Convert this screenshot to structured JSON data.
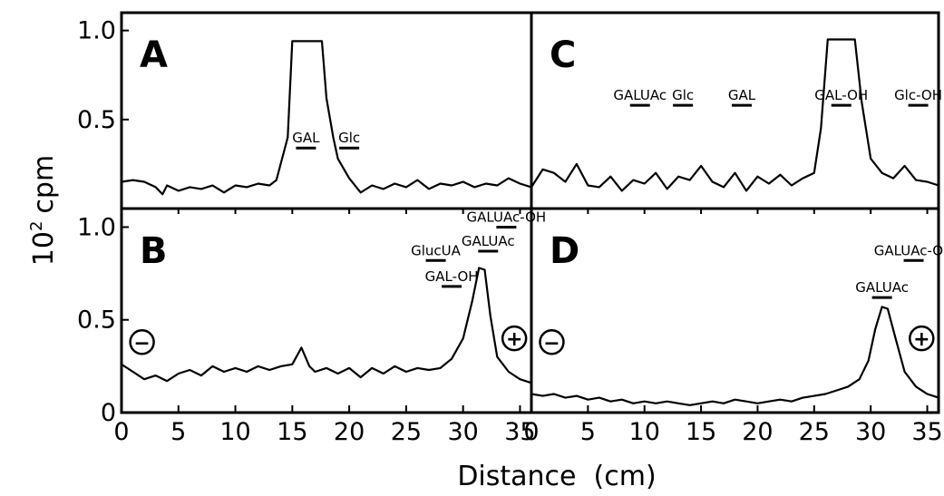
{
  "figure": {
    "ylabel_base": "10",
    "ylabel_exp": "2",
    "ylabel_unit": "cpm",
    "xlabel": "Distance  (cm)"
  },
  "colors": {
    "line": "#000000",
    "background": "#ffffff"
  },
  "chart_data": [
    {
      "type": "line",
      "panel": "A",
      "xlim": [
        0,
        36
      ],
      "ylim": [
        0,
        1.1
      ],
      "yticks": [
        "0.5",
        "1.0"
      ],
      "xticks": [],
      "peak_labels": [
        {
          "text": "GAL",
          "x": 16.2,
          "y": 0.34
        },
        {
          "text": "Glc",
          "x": 20.0,
          "y": 0.34
        }
      ],
      "signs": [],
      "x": [
        0,
        1,
        2,
        3,
        3.6,
        4,
        5,
        6,
        7,
        8,
        9,
        10,
        11,
        12,
        13,
        13.6,
        14.6,
        15,
        16,
        17,
        17.6,
        18,
        18.6,
        19,
        20,
        21,
        22,
        23,
        24,
        25,
        26,
        27,
        28,
        29,
        30,
        31,
        32,
        33,
        34,
        35,
        36
      ],
      "y": [
        0.15,
        0.16,
        0.15,
        0.12,
        0.08,
        0.13,
        0.1,
        0.12,
        0.11,
        0.13,
        0.09,
        0.13,
        0.12,
        0.14,
        0.13,
        0.16,
        0.4,
        0.94,
        0.94,
        0.94,
        0.94,
        0.62,
        0.4,
        0.28,
        0.17,
        0.09,
        0.13,
        0.11,
        0.14,
        0.12,
        0.16,
        0.11,
        0.14,
        0.13,
        0.15,
        0.12,
        0.14,
        0.13,
        0.17,
        0.14,
        0.12
      ]
    },
    {
      "type": "line",
      "panel": "B",
      "xlim": [
        0,
        36
      ],
      "ylim": [
        0,
        1.1
      ],
      "yticks": [
        "0",
        "0.5",
        "1.0"
      ],
      "xticks": [
        "0",
        "5",
        "10",
        "15",
        "20",
        "25",
        "30",
        "35"
      ],
      "peak_labels": [
        {
          "text": "GlucUA",
          "x": 27.6,
          "y": 0.82
        },
        {
          "text": "GAL-OH",
          "x": 29.0,
          "y": 0.68
        },
        {
          "text": "GALUAc",
          "x": 32.2,
          "y": 0.87
        },
        {
          "text": "GALUAc-OH",
          "x": 33.8,
          "y": 1.0
        }
      ],
      "signs": [
        {
          "symbol": "−",
          "x": 1.8,
          "y": 0.38
        },
        {
          "symbol": "+",
          "x": 34.5,
          "y": 0.4
        }
      ],
      "x": [
        0,
        1,
        2,
        3,
        4,
        5,
        6,
        7,
        8,
        9,
        10,
        11,
        12,
        13,
        14,
        15,
        15.8,
        16.5,
        17,
        18,
        19,
        20,
        21,
        22,
        23,
        24,
        25,
        26,
        27,
        28,
        29,
        30,
        30.8,
        31.4,
        31.9,
        32.4,
        33,
        34,
        35,
        36
      ],
      "y": [
        0.26,
        0.22,
        0.18,
        0.2,
        0.17,
        0.21,
        0.23,
        0.2,
        0.25,
        0.22,
        0.24,
        0.22,
        0.25,
        0.23,
        0.25,
        0.26,
        0.35,
        0.25,
        0.22,
        0.24,
        0.21,
        0.24,
        0.19,
        0.24,
        0.21,
        0.25,
        0.22,
        0.24,
        0.23,
        0.24,
        0.29,
        0.4,
        0.6,
        0.78,
        0.77,
        0.52,
        0.3,
        0.22,
        0.18,
        0.16
      ]
    },
    {
      "type": "line",
      "panel": "C",
      "xlim": [
        0,
        36
      ],
      "ylim": [
        0,
        1.1
      ],
      "yticks": [],
      "xticks": [],
      "peak_labels": [
        {
          "text": "GALUAc",
          "x": 9.6,
          "y": 0.58
        },
        {
          "text": "Glc",
          "x": 13.4,
          "y": 0.58
        },
        {
          "text": "GAL",
          "x": 18.6,
          "y": 0.58
        },
        {
          "text": "GAL-OH",
          "x": 27.4,
          "y": 0.58
        },
        {
          "text": "Glc-OH",
          "x": 34.2,
          "y": 0.58
        }
      ],
      "signs": [],
      "x": [
        0,
        1,
        2,
        3,
        4,
        5,
        6,
        7,
        8,
        9,
        10,
        11,
        12,
        13,
        14,
        15,
        16,
        17,
        18,
        19,
        20,
        21,
        22,
        23,
        24,
        25,
        25.6,
        26.2,
        27,
        28,
        28.6,
        29.2,
        30,
        31,
        32,
        33,
        34,
        35,
        36
      ],
      "y": [
        0.12,
        0.22,
        0.2,
        0.15,
        0.25,
        0.13,
        0.12,
        0.18,
        0.1,
        0.16,
        0.14,
        0.2,
        0.11,
        0.18,
        0.16,
        0.24,
        0.15,
        0.12,
        0.2,
        0.1,
        0.18,
        0.14,
        0.19,
        0.13,
        0.17,
        0.2,
        0.45,
        0.95,
        0.95,
        0.95,
        0.95,
        0.6,
        0.28,
        0.2,
        0.17,
        0.24,
        0.16,
        0.15,
        0.13
      ]
    },
    {
      "type": "line",
      "panel": "D",
      "xlim": [
        0,
        36
      ],
      "ylim": [
        0,
        1.1
      ],
      "yticks": [],
      "xticks": [
        "0",
        "5",
        "10",
        "15",
        "20",
        "25",
        "30",
        "35"
      ],
      "peak_labels": [
        {
          "text": "GALUAc",
          "x": 31.0,
          "y": 0.62
        },
        {
          "text": "GALUAc-OH",
          "x": 33.8,
          "y": 0.82
        }
      ],
      "signs": [
        {
          "symbol": "−",
          "x": 1.8,
          "y": 0.38
        },
        {
          "symbol": "+",
          "x": 34.5,
          "y": 0.4
        }
      ],
      "x": [
        0,
        1,
        2,
        3,
        4,
        5,
        6,
        7,
        8,
        9,
        10,
        11,
        12,
        13,
        14,
        15,
        16,
        17,
        18,
        19,
        20,
        21,
        22,
        23,
        24,
        25,
        26,
        27,
        28,
        29,
        29.8,
        30.4,
        31,
        31.5,
        32.2,
        33,
        34,
        35,
        36
      ],
      "y": [
        0.1,
        0.09,
        0.1,
        0.08,
        0.09,
        0.07,
        0.08,
        0.06,
        0.07,
        0.05,
        0.06,
        0.05,
        0.06,
        0.05,
        0.04,
        0.05,
        0.06,
        0.05,
        0.07,
        0.06,
        0.05,
        0.06,
        0.07,
        0.06,
        0.08,
        0.09,
        0.1,
        0.12,
        0.14,
        0.18,
        0.28,
        0.45,
        0.57,
        0.56,
        0.4,
        0.22,
        0.14,
        0.1,
        0.08
      ]
    }
  ]
}
